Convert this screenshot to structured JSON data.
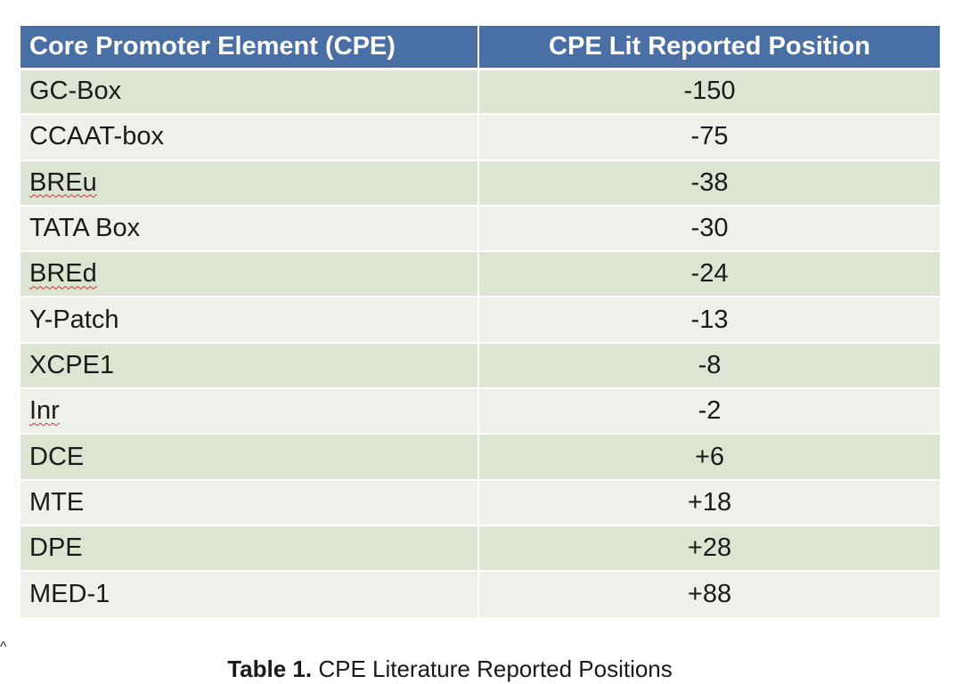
{
  "table": {
    "headers": [
      "Core Promoter Element (CPE)",
      "CPE Lit Reported Position"
    ],
    "rows": [
      {
        "element": "GC-Box",
        "position": "-150",
        "spellcheck": false
      },
      {
        "element": "CCAAT-box",
        "position": "-75",
        "spellcheck": false
      },
      {
        "element": "BREu",
        "position": "-38",
        "spellcheck": true
      },
      {
        "element": "TATA Box",
        "position": "-30",
        "spellcheck": false
      },
      {
        "element": "BREd",
        "position": "-24",
        "spellcheck": true
      },
      {
        "element": "Y-Patch",
        "position": "-13",
        "spellcheck": false
      },
      {
        "element": "XCPE1",
        "position": "-8",
        "spellcheck": false
      },
      {
        "element": "Inr",
        "position": "-2",
        "spellcheck": true
      },
      {
        "element": "DCE",
        "position": "+6",
        "spellcheck": false
      },
      {
        "element": "MTE",
        "position": "+18",
        "spellcheck": false
      },
      {
        "element": "DPE",
        "position": "+28",
        "spellcheck": false
      },
      {
        "element": "MED-1",
        "position": "+88",
        "spellcheck": false
      }
    ]
  },
  "caption": {
    "label": "Table 1.",
    "text": " CPE Literature Reported Positions"
  },
  "stray_mark": "^",
  "colors": {
    "header_bg": "#4a6fa5",
    "row_odd": "#dbe5d2",
    "row_even": "#eef1ea",
    "spellcheck_underline": "#d03030"
  }
}
